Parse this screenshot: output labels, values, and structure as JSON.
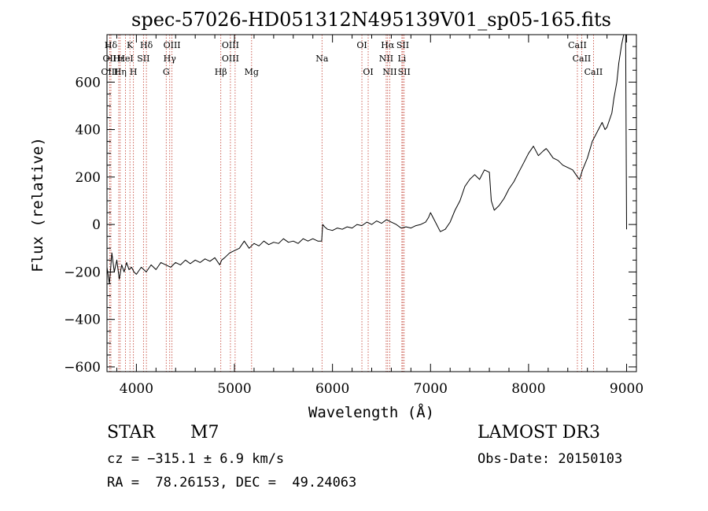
{
  "chart_data": {
    "type": "line",
    "title": "spec-57026-HD051312N495139V01_sp05-165.fits",
    "xlabel": "Wavelength (Å)",
    "ylabel": "Flux (relative)",
    "xlim": [
      3700,
      9100
    ],
    "ylim": [
      -620,
      800
    ],
    "xticks": [
      4000,
      5000,
      6000,
      7000,
      8000,
      9000
    ],
    "xtick_labels": [
      "4000",
      "5000",
      "6000",
      "7000",
      "8000",
      "9000"
    ],
    "yticks": [
      -600,
      -400,
      -200,
      0,
      200,
      400,
      600
    ],
    "ytick_labels": [
      "−600",
      "−400",
      "−200",
      "0",
      "200",
      "400",
      "600"
    ],
    "series": [
      {
        "name": "flux",
        "x": [
          3700,
          3725,
          3750,
          3775,
          3800,
          3825,
          3850,
          3875,
          3900,
          3925,
          3950,
          3975,
          4000,
          4050,
          4100,
          4150,
          4200,
          4250,
          4300,
          4350,
          4400,
          4450,
          4500,
          4550,
          4600,
          4650,
          4700,
          4750,
          4800,
          4850,
          4870,
          4900,
          4950,
          5000,
          5050,
          5100,
          5150,
          5200,
          5250,
          5300,
          5350,
          5400,
          5450,
          5500,
          5550,
          5600,
          5650,
          5700,
          5750,
          5800,
          5850,
          5890,
          5900,
          5920,
          5950,
          6000,
          6050,
          6100,
          6150,
          6200,
          6250,
          6300,
          6350,
          6400,
          6450,
          6500,
          6550,
          6600,
          6650,
          6700,
          6750,
          6800,
          6850,
          6900,
          6950,
          6980,
          7000,
          7050,
          7100,
          7150,
          7200,
          7250,
          7300,
          7350,
          7400,
          7450,
          7500,
          7550,
          7600,
          7620,
          7650,
          7700,
          7750,
          7800,
          7850,
          7900,
          7950,
          8000,
          8050,
          8100,
          8150,
          8180,
          8200,
          8250,
          8300,
          8350,
          8400,
          8450,
          8500,
          8520,
          8550,
          8600,
          8650,
          8700,
          8750,
          8780,
          8800,
          8850,
          8870,
          8900,
          8920,
          8950,
          8970,
          8990,
          9000
        ],
        "y": [
          -180,
          -250,
          -120,
          -200,
          -150,
          -230,
          -170,
          -200,
          -160,
          -190,
          -180,
          -200,
          -210,
          -180,
          -200,
          -170,
          -190,
          -160,
          -170,
          -180,
          -160,
          -170,
          -150,
          -165,
          -150,
          -160,
          -145,
          -155,
          -140,
          -170,
          -150,
          -140,
          -120,
          -110,
          -100,
          -70,
          -100,
          -80,
          -90,
          -70,
          -85,
          -75,
          -80,
          -60,
          -75,
          -70,
          -80,
          -60,
          -70,
          -60,
          -70,
          -70,
          0,
          -10,
          -20,
          -25,
          -15,
          -20,
          -10,
          -15,
          0,
          -5,
          10,
          0,
          15,
          5,
          20,
          10,
          0,
          -15,
          -10,
          -15,
          -5,
          0,
          10,
          30,
          50,
          10,
          -30,
          -20,
          10,
          60,
          100,
          160,
          190,
          210,
          190,
          230,
          220,
          100,
          60,
          80,
          110,
          150,
          180,
          220,
          260,
          300,
          330,
          290,
          310,
          320,
          310,
          280,
          270,
          250,
          240,
          230,
          200,
          190,
          230,
          280,
          350,
          390,
          430,
          400,
          410,
          470,
          530,
          600,
          680,
          760,
          800,
          810,
          -20
        ]
      }
    ],
    "spectral_lines": [
      {
        "label": "Hδ",
        "wavelength": 3740,
        "row": 1
      },
      {
        "label": "K",
        "wavelength": 3934,
        "row": 1
      },
      {
        "label": "Hδ",
        "wavelength": 4102,
        "row": 1
      },
      {
        "label": "OIII",
        "wavelength": 4363,
        "row": 1
      },
      {
        "label": "OIII",
        "wavelength": 4959,
        "row": 1
      },
      {
        "label": "OI",
        "wavelength": 6300,
        "row": 1
      },
      {
        "label": "Hα",
        "wavelength": 6563,
        "row": 1
      },
      {
        "label": "SII",
        "wavelength": 6717,
        "row": 1
      },
      {
        "label": "CaII",
        "wavelength": 8498,
        "row": 1
      },
      {
        "label": "OII",
        "wavelength": 3727,
        "row": 2
      },
      {
        "label": "Hε",
        "wavelength": 3820,
        "row": 2
      },
      {
        "label": "HeI",
        "wavelength": 3889,
        "row": 2
      },
      {
        "label": "SII",
        "wavelength": 4072,
        "row": 2
      },
      {
        "label": "Hγ",
        "wavelength": 4340,
        "row": 2
      },
      {
        "label": "OIII",
        "wavelength": 4959,
        "row": 2
      },
      {
        "label": "Na",
        "wavelength": 5893,
        "row": 2
      },
      {
        "label": "NII",
        "wavelength": 6548,
        "row": 2
      },
      {
        "label": "Li",
        "wavelength": 6708,
        "row": 2
      },
      {
        "label": "CaII",
        "wavelength": 8542,
        "row": 2
      },
      {
        "label": "OIII",
        "wavelength": 3727,
        "row": 3
      },
      {
        "label": "Hη",
        "wavelength": 3835,
        "row": 3
      },
      {
        "label": "H",
        "wavelength": 3970,
        "row": 3
      },
      {
        "label": "G",
        "wavelength": 4304,
        "row": 3
      },
      {
        "label": "Hβ",
        "wavelength": 4861,
        "row": 3
      },
      {
        "label": "Mg",
        "wavelength": 5175,
        "row": 3
      },
      {
        "label": "OI",
        "wavelength": 6364,
        "row": 3
      },
      {
        "label": "NII",
        "wavelength": 6584,
        "row": 3
      },
      {
        "label": "SII",
        "wavelength": 6731,
        "row": 3
      },
      {
        "label": "CaII",
        "wavelength": 8662,
        "row": 3
      }
    ],
    "line_markers": [
      3727,
      3740,
      3820,
      3835,
      3889,
      3934,
      3970,
      4072,
      4102,
      4304,
      4340,
      4363,
      4861,
      4959,
      5007,
      5175,
      5893,
      6300,
      6364,
      6548,
      6563,
      6584,
      6708,
      6717,
      6731,
      8498,
      8542,
      8662
    ]
  },
  "info": {
    "class_label": "STAR",
    "subclass": "M7",
    "survey": "LAMOST DR3",
    "cz_text": "cz = −315.1 ± 6.9 km/s",
    "obs_date_text": "Obs-Date: 20150103",
    "radec_text": "RA =  78.26153, DEC =  49.24063"
  }
}
